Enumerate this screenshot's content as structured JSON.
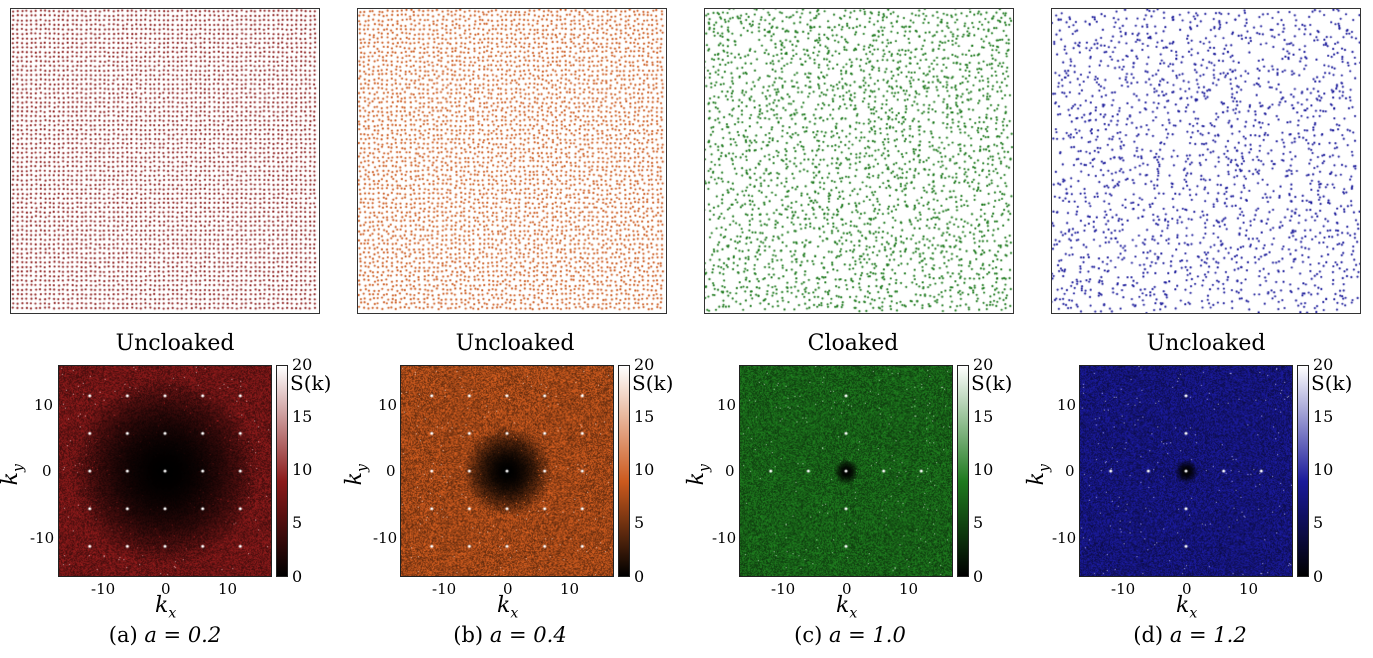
{
  "colors": {
    "a": "#8b1a1a",
    "b": "#cc5a1e",
    "c": "#1e7a1e",
    "d": "#1a1a9a"
  },
  "panels": [
    {
      "id": "a",
      "status": "Uncloaked",
      "caption_prefix": "(a)",
      "caption_eq": "a = 0.2",
      "colorbar_ticks": [
        "20",
        "15",
        "10",
        "5",
        "0"
      ],
      "colorbar_label": "S(k)",
      "y_ticks": [
        "10",
        "0",
        "-10"
      ],
      "x_ticks": [
        "-10",
        "0",
        "10"
      ],
      "x_label": "k",
      "x_sub": "x",
      "y_label": "k",
      "y_sub": "y"
    },
    {
      "id": "b",
      "status": "Uncloaked",
      "caption_prefix": "(b)",
      "caption_eq": "a = 0.4",
      "colorbar_ticks": [
        "20",
        "15",
        "10",
        "5",
        "0"
      ],
      "colorbar_label": "S(k)",
      "y_ticks": [
        "10",
        "0",
        "-10"
      ],
      "x_ticks": [
        "-10",
        "0",
        "10"
      ],
      "x_label": "k",
      "x_sub": "x",
      "y_label": "k",
      "y_sub": "y"
    },
    {
      "id": "c",
      "status": "Cloaked",
      "caption_prefix": "(c)",
      "caption_eq": "a = 1.0",
      "colorbar_ticks": [
        "20",
        "15",
        "10",
        "5",
        "0"
      ],
      "colorbar_label": "S(k)",
      "y_ticks": [
        "10",
        "0",
        "-10"
      ],
      "x_ticks": [
        "-10",
        "0",
        "10"
      ],
      "x_label": "k",
      "x_sub": "x",
      "y_label": "k",
      "y_sub": "y"
    },
    {
      "id": "d",
      "status": "Uncloaked",
      "caption_prefix": "(d)",
      "caption_eq": "a = 1.2",
      "colorbar_ticks": [
        "20",
        "15",
        "10",
        "5",
        "0"
      ],
      "colorbar_label": "S(k)",
      "y_ticks": [
        "10",
        "0",
        "-10"
      ],
      "x_ticks": [
        "-10",
        "0",
        "10"
      ],
      "x_label": "k",
      "x_sub": "x",
      "y_label": "k",
      "y_sub": "y"
    }
  ],
  "chart_data": [
    {
      "type": "scatter",
      "panel": "a"
    },
    {
      "type": "heatmap",
      "panel": "a",
      "xlim": [
        -17,
        17
      ],
      "ylim": [
        -17,
        17
      ],
      "colorbar_range": [
        0,
        20
      ]
    },
    {
      "type": "scatter",
      "panel": "b"
    },
    {
      "type": "heatmap",
      "panel": "b",
      "xlim": [
        -17,
        17
      ],
      "ylim": [
        -17,
        17
      ],
      "colorbar_range": [
        0,
        20
      ]
    },
    {
      "type": "scatter",
      "panel": "c"
    },
    {
      "type": "heatmap",
      "panel": "c",
      "xlim": [
        -17,
        17
      ],
      "ylim": [
        -17,
        17
      ],
      "colorbar_range": [
        0,
        20
      ]
    },
    {
      "type": "scatter",
      "panel": "d"
    },
    {
      "type": "heatmap",
      "panel": "d",
      "xlim": [
        -17,
        17
      ],
      "ylim": [
        -17,
        17
      ],
      "colorbar_range": [
        0,
        20
      ]
    }
  ]
}
